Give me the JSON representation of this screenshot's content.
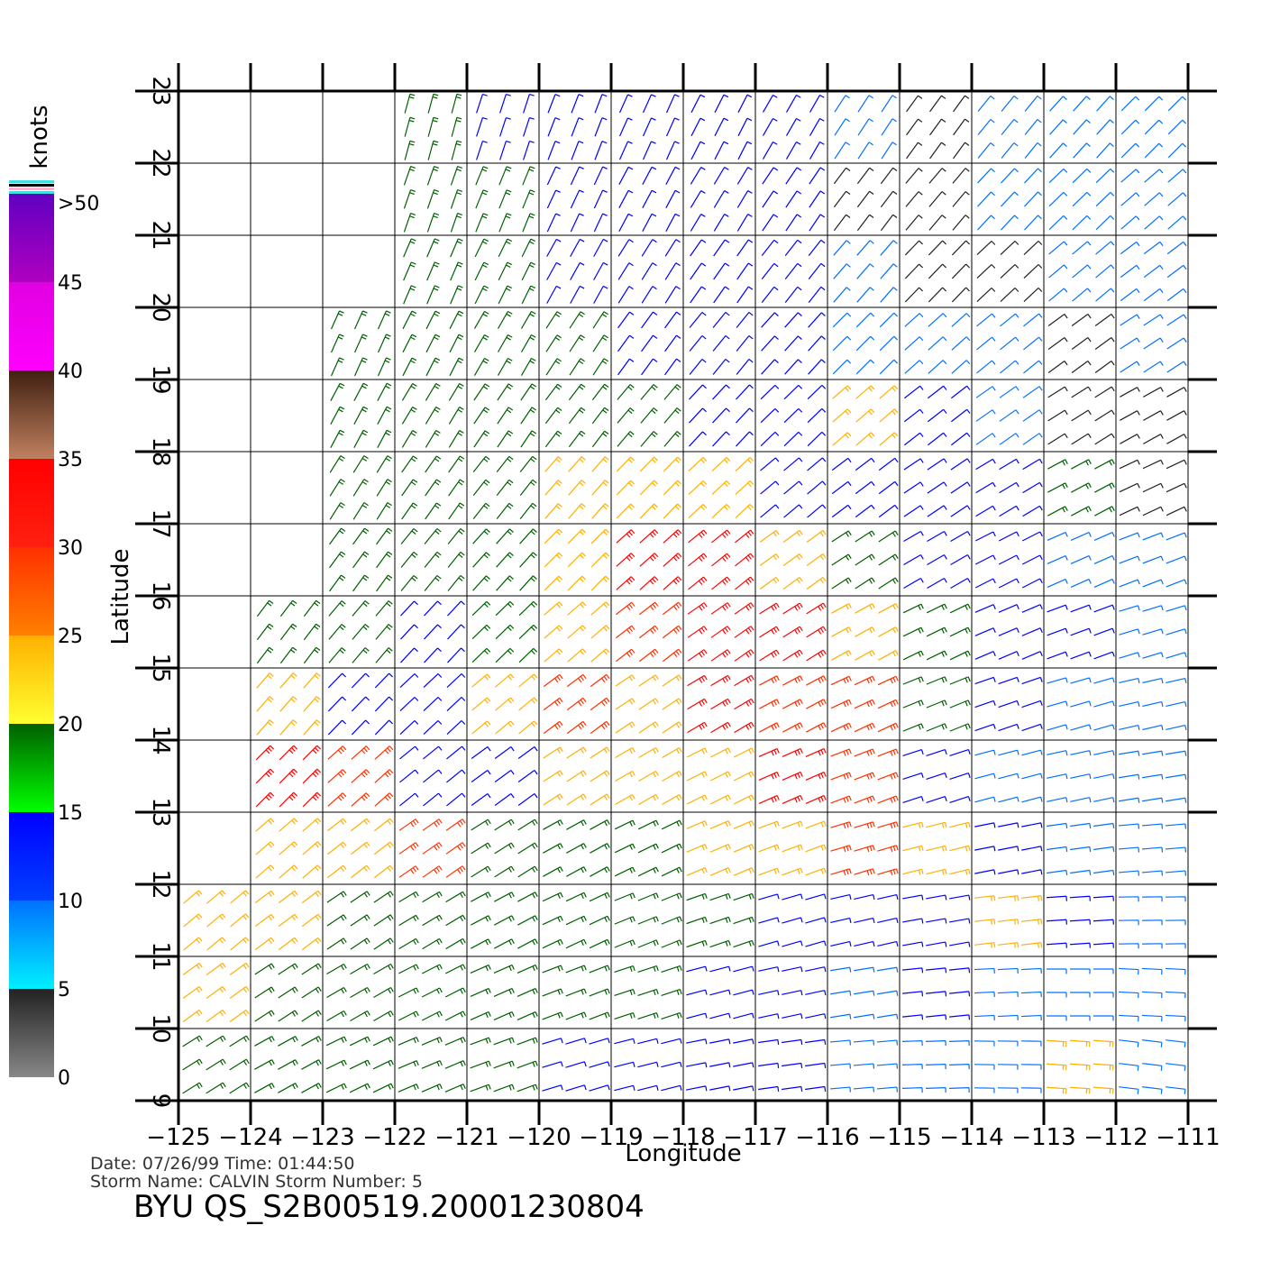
{
  "chart_data": {
    "type": "wind-barb-map",
    "title": "BYU  QS_S2B00519.20001230804",
    "info": [
      "Date: 07/26/99   Time: 01:44:50",
      "Storm Name: CALVIN   Storm Number: 5"
    ],
    "x_label": "Longitude",
    "y_label": "Latitude",
    "xlim": [
      -125,
      -110.6
    ],
    "ylim": [
      9,
      23
    ],
    "xticks": [
      {
        "value": -125,
        "label": "−125"
      },
      {
        "value": -124,
        "label": "−124"
      },
      {
        "value": -123,
        "label": "−123"
      },
      {
        "value": -122,
        "label": "−122"
      },
      {
        "value": -121,
        "label": "−121"
      },
      {
        "value": -120,
        "label": "−120"
      },
      {
        "value": -119,
        "label": "−119"
      },
      {
        "value": -118,
        "label": "−118"
      },
      {
        "value": -117,
        "label": "−117"
      },
      {
        "value": -116,
        "label": "−116"
      },
      {
        "value": -115,
        "label": "−115"
      },
      {
        "value": -114,
        "label": "−114"
      },
      {
        "value": -113,
        "label": "−113"
      },
      {
        "value": -112,
        "label": "−112"
      },
      {
        "value": -111,
        "label": "−111"
      }
    ],
    "yticks": [
      9,
      10,
      11,
      12,
      13,
      14,
      15,
      16,
      17,
      18,
      19,
      20,
      21,
      22,
      23
    ],
    "grid": true,
    "colorbar": {
      "label": "knots",
      "lim": [
        0,
        50
      ],
      "ticks": [
        0,
        5,
        10,
        15,
        20,
        25,
        30,
        35,
        40,
        45,
        {
          "value": 50,
          "label": ">50"
        }
      ],
      "colors": [
        [
          "#888888",
          "#222222"
        ],
        [
          "#00f0ff",
          "#0070ff"
        ],
        [
          "#0040ff",
          "#0000ff"
        ],
        [
          "#00ff00",
          "#006000"
        ],
        [
          "#ffff30",
          "#ffb000"
        ],
        [
          "#ff8000",
          "#ff3000"
        ],
        [
          "#ff2010",
          "#ff0000"
        ],
        [
          "#c08060",
          "#402010"
        ],
        [
          "#ff00ff",
          "#e000e0"
        ],
        [
          "#b000c0",
          "#6000c0"
        ]
      ]
    },
    "lons": [
      -124.5,
      -123.5,
      -122.5,
      -121.5,
      -120.5,
      -119.5,
      -118.5,
      -117.5,
      -116.5,
      -115.5,
      -114.5,
      -113.5,
      -112.5,
      -111.5
    ],
    "lats": [
      22.5,
      21.5,
      20.5,
      19.5,
      18.5,
      17.5,
      16.5,
      15.5,
      14.5,
      13.5,
      12.5,
      11.5,
      10.5,
      9.5
    ],
    "speed": [
      [
        null,
        null,
        null,
        16,
        14,
        13,
        12,
        12,
        10,
        8,
        4,
        7,
        7,
        8
      ],
      [
        null,
        null,
        null,
        17,
        15,
        13,
        12,
        12,
        10,
        4,
        3,
        7,
        8,
        8
      ],
      [
        null,
        null,
        null,
        17,
        16,
        14,
        13,
        12,
        10,
        7,
        4,
        4,
        6,
        7
      ],
      [
        null,
        null,
        17,
        17,
        17,
        16,
        14,
        12,
        11,
        9,
        7,
        6,
        4,
        6
      ],
      [
        null,
        null,
        18,
        17,
        18,
        19,
        17,
        14,
        13,
        20,
        10,
        8,
        4,
        4
      ],
      [
        null,
        null,
        17,
        17,
        18,
        21,
        24,
        20,
        14,
        12,
        11,
        10,
        15,
        4
      ],
      [
        null,
        null,
        17,
        17,
        18,
        24,
        30,
        30,
        22,
        15,
        11,
        10,
        9,
        6
      ],
      [
        null,
        17,
        16,
        14,
        16,
        22,
        28,
        33,
        33,
        22,
        18,
        12,
        10,
        8
      ],
      [
        null,
        24,
        13,
        10,
        20,
        26,
        24,
        30,
        28,
        26,
        17,
        13,
        9,
        8
      ],
      [
        null,
        30,
        28,
        12,
        14,
        20,
        20,
        22,
        30,
        28,
        14,
        8,
        7,
        8
      ],
      [
        null,
        22,
        24,
        28,
        16,
        17,
        18,
        20,
        20,
        26,
        21,
        12,
        9,
        7
      ],
      [
        22,
        20,
        18,
        15,
        16,
        17,
        18,
        16,
        14,
        13,
        14,
        20,
        10,
        9
      ],
      [
        20,
        18,
        17,
        15,
        16,
        16,
        15,
        10,
        10,
        9,
        10,
        5,
        5,
        8
      ],
      [
        18,
        17,
        16,
        16,
        16,
        14,
        12,
        10,
        10,
        8,
        5,
        5,
        22,
        8
      ]
    ]
  }
}
